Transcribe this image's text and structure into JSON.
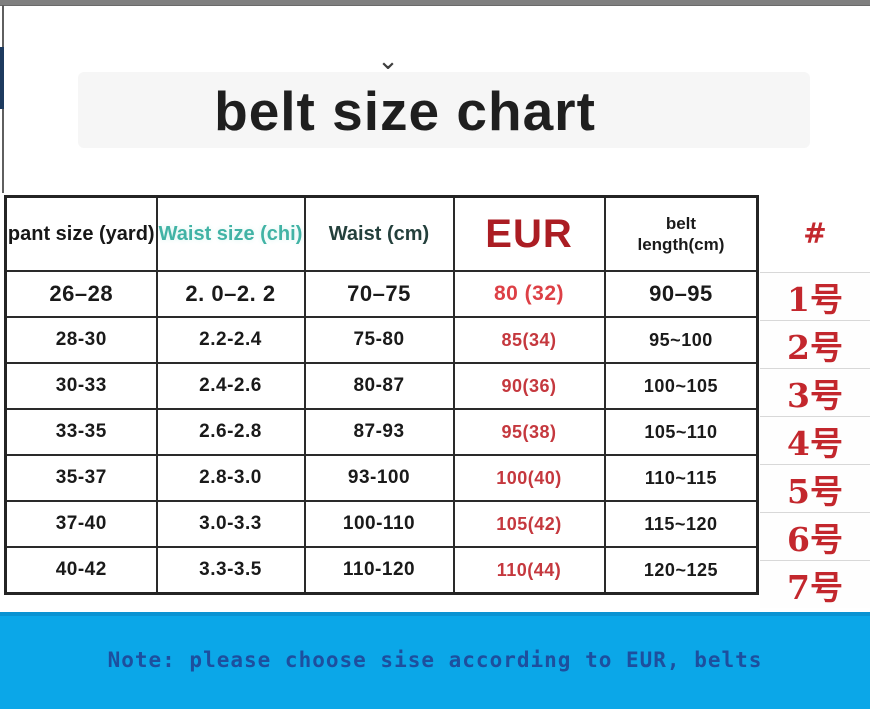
{
  "page": {
    "title": "belt size chart",
    "chevron_icon": "⌄"
  },
  "table": {
    "headers": [
      "pant size (yard)",
      "Waist size (chi)",
      "Waist (cm)",
      "EUR",
      "belt length(cm)"
    ],
    "rows": [
      [
        "26–28",
        "2. 0–2. 2",
        "70–75",
        "80 (32)",
        "90–95"
      ],
      [
        "28-30",
        "2.2-2.4",
        "75-80",
        "85(34)",
        "95~100"
      ],
      [
        "30-33",
        "2.4-2.6",
        "80-87",
        "90(36)",
        "100~105"
      ],
      [
        "33-35",
        "2.6-2.8",
        "87-93",
        "95(38)",
        "105~110"
      ],
      [
        "35-37",
        "2.8-3.0",
        "93-100",
        "100(40)",
        "110~115"
      ],
      [
        "37-40",
        "3.0-3.3",
        "100-110",
        "105(42)",
        "115~120"
      ],
      [
        "40-42",
        "3.3-3.5",
        "110-120",
        "110(44)",
        "120~125"
      ]
    ]
  },
  "side_column": {
    "header": "#",
    "items": [
      "1号",
      "2号",
      "3号",
      "4号",
      "5号",
      "6号",
      "7号"
    ]
  },
  "note": {
    "text": "Note: please choose sise according to EUR, belts"
  },
  "colors": {
    "accent_red": "#c3272d",
    "eur_header_red": "#ab1d23",
    "teal_header": "#41b3a5",
    "note_band_blue": "#0ba7e8",
    "note_text_blue": "#1d4f9e"
  },
  "chart_data": {
    "type": "table",
    "title": "belt size chart",
    "columns": [
      "pant size (yard)",
      "Waist size (chi)",
      "Waist (cm)",
      "EUR",
      "belt length(cm)",
      "#"
    ],
    "rows": [
      [
        "26–28",
        "2. 0–2. 2",
        "70–75",
        "80 (32)",
        "90–95",
        "1号"
      ],
      [
        "28-30",
        "2.2-2.4",
        "75-80",
        "85(34)",
        "95~100",
        "2号"
      ],
      [
        "30-33",
        "2.4-2.6",
        "80-87",
        "90(36)",
        "100~105",
        "3号"
      ],
      [
        "33-35",
        "2.6-2.8",
        "87-93",
        "95(38)",
        "105~110",
        "4号"
      ],
      [
        "35-37",
        "2.8-3.0",
        "93-100",
        "100(40)",
        "110~115",
        "5号"
      ],
      [
        "37-40",
        "3.0-3.3",
        "100-110",
        "105(42)",
        "115~120",
        "6号"
      ],
      [
        "40-42",
        "3.3-3.5",
        "110-120",
        "110(44)",
        "120~125",
        "7号"
      ]
    ],
    "notes": "Note: please choose sise according to EUR, belts"
  }
}
